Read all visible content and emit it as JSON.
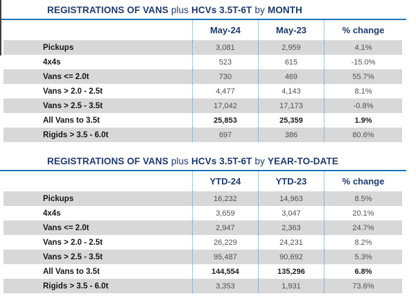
{
  "colors": {
    "navy": "#1e3a6e",
    "rule_blue": "#1a75bc",
    "dotted_blue": "#4a90d0",
    "stripe_gray": "#d8d8d8",
    "value_gray": "#4f4f4f"
  },
  "tables": [
    {
      "title": {
        "bold1": "REGISTRATIONS OF VANS",
        "light1": "plus",
        "bold2": "HCVs 3.5T-6T",
        "light2": "by",
        "bold3": "MONTH"
      },
      "columns": [
        "May-24",
        "May-23",
        "% change"
      ],
      "rows": [
        {
          "label": "Pickups",
          "v1": "3,081",
          "v2": "2,959",
          "pct": "4.1%"
        },
        {
          "label": "4x4s",
          "v1": "523",
          "v2": "615",
          "pct": "-15.0%"
        },
        {
          "label": "Vans <= 2.0t",
          "v1": "730",
          "v2": "469",
          "pct": "55.7%"
        },
        {
          "label": "Vans > 2.0 - 2.5t",
          "v1": "4,477",
          "v2": "4,143",
          "pct": "8.1%"
        },
        {
          "label": "Vans > 2.5 - 3.5t",
          "v1": "17,042",
          "v2": "17,173",
          "pct": "-0.8%"
        },
        {
          "label": "All Vans to 3.5t",
          "v1": "25,853",
          "v2": "25,359",
          "pct": "1.9%"
        },
        {
          "label": "Rigids > 3.5 - 6.0t",
          "v1": "697",
          "v2": "386",
          "pct": "80.6%"
        }
      ]
    },
    {
      "title": {
        "bold1": "REGISTRATIONS OF VANS",
        "light1": "plus",
        "bold2": "HCVs 3.5T-6T",
        "light2": "by",
        "bold3": "YEAR-TO-DATE"
      },
      "columns": [
        "YTD-24",
        "YTD-23",
        "% change"
      ],
      "rows": [
        {
          "label": "Pickups",
          "v1": "16,232",
          "v2": "14,963",
          "pct": "8.5%"
        },
        {
          "label": "4x4s",
          "v1": "3,659",
          "v2": "3,047",
          "pct": "20.1%"
        },
        {
          "label": "Vans <= 2.0t",
          "v1": "2,947",
          "v2": "2,363",
          "pct": "24.7%"
        },
        {
          "label": "Vans > 2.0 - 2.5t",
          "v1": "26,229",
          "v2": "24,231",
          "pct": "8.2%"
        },
        {
          "label": "Vans > 2.5 - 3.5t",
          "v1": "95,487",
          "v2": "90,692",
          "pct": "5.3%"
        },
        {
          "label": "All Vans to 3.5t",
          "v1": "144,554",
          "v2": "135,296",
          "pct": "6.8%"
        },
        {
          "label": "Rigids > 3.5 - 6.0t",
          "v1": "3,353",
          "v2": "1,931",
          "pct": "73.6%"
        }
      ]
    }
  ],
  "chart_data": [
    {
      "type": "table",
      "title": "REGISTRATIONS OF VANS plus HCVs 3.5T-6T by MONTH",
      "columns": [
        "May-24",
        "May-23",
        "% change"
      ],
      "categories": [
        "Pickups",
        "4x4s",
        "Vans <= 2.0t",
        "Vans > 2.0 - 2.5t",
        "Vans > 2.5 - 3.5t",
        "All Vans to 3.5t",
        "Rigids > 3.5 - 6.0t"
      ],
      "series": [
        {
          "name": "May-24",
          "values": [
            3081,
            523,
            730,
            4477,
            17042,
            25853,
            697
          ]
        },
        {
          "name": "May-23",
          "values": [
            2959,
            615,
            469,
            4143,
            17173,
            25359,
            386
          ]
        },
        {
          "name": "% change",
          "values": [
            4.1,
            -15.0,
            55.7,
            8.1,
            -0.8,
            1.9,
            80.6
          ]
        }
      ]
    },
    {
      "type": "table",
      "title": "REGISTRATIONS OF VANS plus HCVs 3.5T-6T by YEAR-TO-DATE",
      "columns": [
        "YTD-24",
        "YTD-23",
        "% change"
      ],
      "categories": [
        "Pickups",
        "4x4s",
        "Vans <= 2.0t",
        "Vans > 2.0 - 2.5t",
        "Vans > 2.5 - 3.5t",
        "All Vans to 3.5t",
        "Rigids > 3.5 - 6.0t"
      ],
      "series": [
        {
          "name": "YTD-24",
          "values": [
            16232,
            3659,
            2947,
            26229,
            95487,
            144554,
            3353
          ]
        },
        {
          "name": "YTD-23",
          "values": [
            14963,
            3047,
            2363,
            24231,
            90692,
            135296,
            1931
          ]
        },
        {
          "name": "% change",
          "values": [
            8.5,
            20.1,
            24.7,
            8.2,
            5.3,
            6.8,
            73.6
          ]
        }
      ]
    }
  ]
}
